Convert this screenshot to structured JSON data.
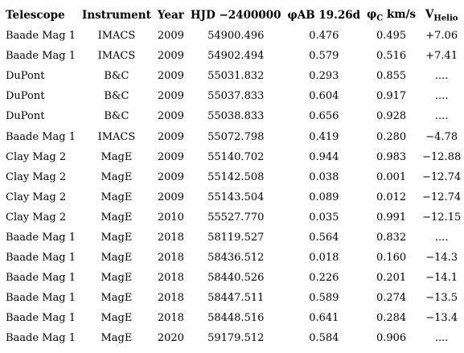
{
  "table": {
    "headers": {
      "telescope": "Telescope",
      "instrument": "Instrument",
      "year": "Year",
      "hjd": "HJD −2400000",
      "phi_ab": "φAB 19.26d",
      "phi_c_sym": "φ",
      "phi_c_sub": "C",
      "phi_c_unit": " km/s",
      "vhelio_sym": "V",
      "vhelio_sub": "Helio"
    },
    "rows": [
      [
        "Baade Mag 1",
        "IMACS",
        "2009",
        "54900.496",
        "0.476",
        "0.495",
        "+7.06"
      ],
      [
        "Baade Mag 1",
        "IMACS",
        "2009",
        "54902.494",
        "0.579",
        "0.516",
        "+7.41"
      ],
      [
        "DuPont",
        "B&C",
        "2009",
        "55031.832",
        "0.293",
        "0.855",
        "...."
      ],
      [
        "DuPont",
        "B&C",
        "2009",
        "55037.833",
        "0.604",
        "0.917",
        "...."
      ],
      [
        "DuPont",
        "B&C",
        "2009",
        "55038.833",
        "0.656",
        "0.928",
        "...."
      ],
      [
        "Baade Mag 1",
        "IMACS",
        "2009",
        "55072.798",
        "0.419",
        "0.280",
        "−4.78"
      ],
      [
        "Clay Mag 2",
        "MagE",
        "2009",
        "55140.702",
        "0.944",
        "0.983",
        "−12.88"
      ],
      [
        "Clay Mag 2",
        "MagE",
        "2009",
        "55142.508",
        "0.038",
        "0.001",
        "−12.74"
      ],
      [
        "Clay Mag 2",
        "MagE",
        "2009",
        "55143.504",
        "0.089",
        "0.012",
        "−12.74"
      ],
      [
        "Clay Mag 2",
        "MagE",
        "2010",
        "55527.770",
        "0.035",
        "0.991",
        "−12.15"
      ],
      [
        "Baade Mag 1",
        "MagE",
        "2018",
        "58119.527",
        "0.564",
        "0.832",
        "...."
      ],
      [
        "Baade Mag 1",
        "MagE",
        "2018",
        "58436.512",
        "0.018",
        "0.160",
        "−14.3"
      ],
      [
        "Baade Mag 1",
        "MagE",
        "2018",
        "58440.526",
        "0.226",
        "0.201",
        "−14.1"
      ],
      [
        "Baade Mag 1",
        "MagE",
        "2018",
        "58447.511",
        "0.589",
        "0.274",
        "−13.5"
      ],
      [
        "Baade Mag 1",
        "MagE",
        "2018",
        "58448.516",
        "0.641",
        "0.284",
        "−13.4"
      ],
      [
        "Baade Mag 1",
        "MagE",
        "2020",
        "59179.512",
        "0.584",
        "0.906",
        "...."
      ]
    ]
  }
}
